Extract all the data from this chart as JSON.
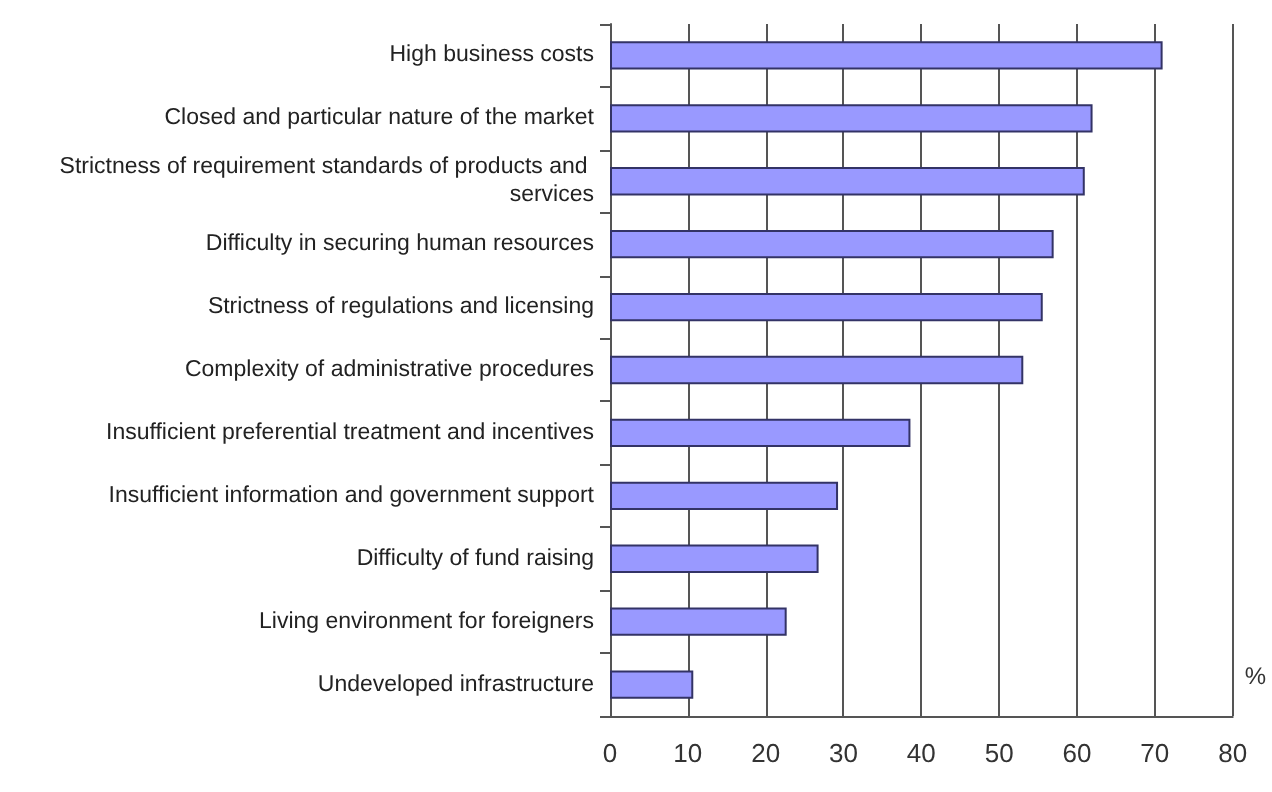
{
  "chart_data": {
    "type": "bar",
    "orientation": "horizontal",
    "categories": [
      "High business costs",
      "Closed and particular nature of the market",
      "Strictness of requirement standards of products and services",
      "Difficulty in securing human resources",
      "Strictness of regulations and licensing",
      "Complexity of administrative procedures",
      "Insufficient preferential treatment and incentives",
      "Insufficient information and government support",
      "Difficulty of fund raising",
      "Living environment for foreigners",
      "Undeveloped infrastructure"
    ],
    "values": [
      71,
      62,
      61,
      57,
      55.6,
      53.1,
      38.6,
      29.3,
      26.8,
      22.7,
      10.7
    ],
    "color": "#9999ff",
    "xlabel": "%",
    "xlim": [
      0,
      80
    ],
    "xticks": [
      0,
      10,
      20,
      30,
      40,
      50,
      60,
      70,
      80
    ],
    "grid": "x"
  }
}
